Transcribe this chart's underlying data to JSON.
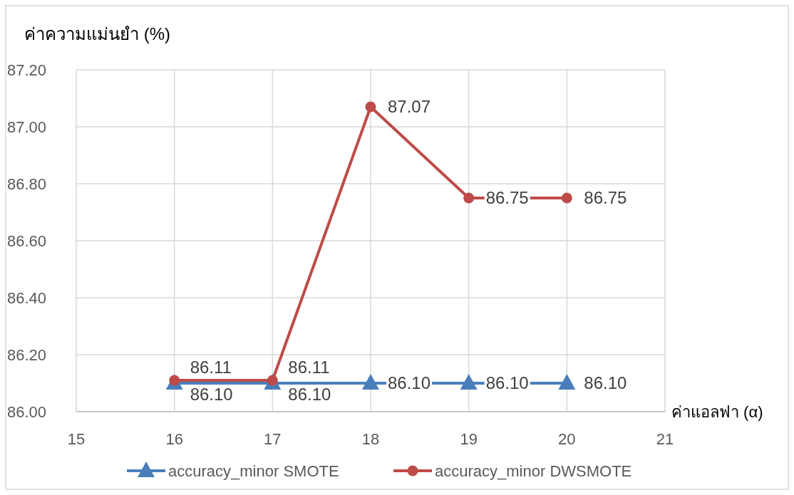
{
  "chart_data": {
    "type": "line",
    "xlabel": "ค่าแอลฟา (α)",
    "ylabel": "ค่าความแม่นยำ (%)",
    "x": [
      16,
      17,
      18,
      19,
      20
    ],
    "series": [
      {
        "name": "accuracy_minor SMOTE",
        "color": "#4a7ebb",
        "marker": "triangle",
        "values": [
          86.1,
          86.1,
          86.1,
          86.1,
          86.1
        ],
        "value_labels": [
          "86.10",
          "86.10",
          "86.10",
          "86.10",
          "86.10"
        ]
      },
      {
        "name": "accuracy_minor DWSMOTE",
        "color": "#be4b48",
        "marker": "circle",
        "values": [
          86.11,
          86.11,
          87.07,
          86.75,
          86.75
        ],
        "value_labels": [
          "86.11",
          "86.11",
          "87.07",
          "86.75",
          "86.75"
        ]
      }
    ],
    "xlim": [
      15,
      21
    ],
    "xticks": [
      15,
      16,
      17,
      18,
      19,
      20,
      21
    ],
    "ylim": [
      86.0,
      87.2
    ],
    "yticks": [
      {
        "value": 86.0,
        "label": "86.00"
      },
      {
        "value": 86.2,
        "label": "86.20"
      },
      {
        "value": 86.4,
        "label": "86.40"
      },
      {
        "value": 86.6,
        "label": "86.60"
      },
      {
        "value": 86.8,
        "label": "86.80"
      },
      {
        "value": 87.0,
        "label": "87.00"
      },
      {
        "value": 87.2,
        "label": "87.20"
      }
    ],
    "grid": true,
    "legend": "bottom",
    "line_style": "solid"
  }
}
